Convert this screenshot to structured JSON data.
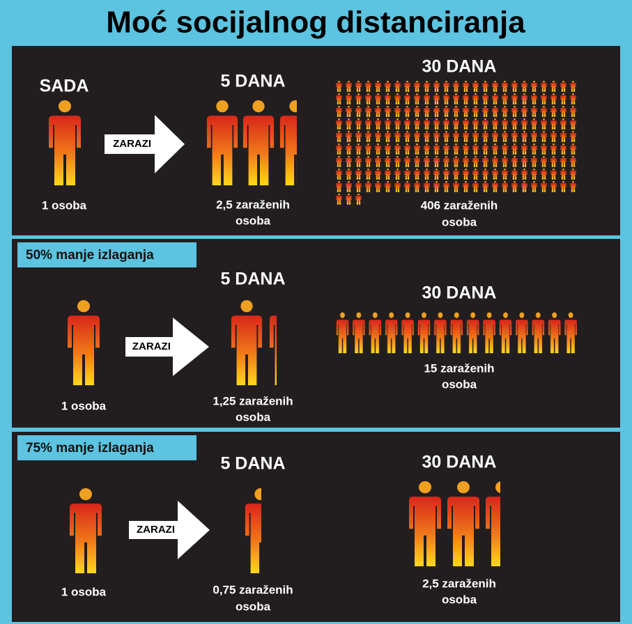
{
  "title": "Moć socijalnog distanciranja",
  "panels": [
    {
      "start_heading": "SADA",
      "start_caption": "1 osoba",
      "arrow": "ZARAZI",
      "day5_heading": "5 DANA",
      "day5_caption": [
        "2,5 zaraženih",
        "osoba"
      ],
      "day30_heading": "30 DANA",
      "day30_caption": [
        "406 zaraženih",
        "osoba"
      ]
    },
    {
      "badge": "50% manje izlaganja",
      "start_caption": "1 osoba",
      "arrow": "ZARAZI",
      "day5_heading": "5 DANA",
      "day5_caption": [
        "1,25 zaraženih",
        "osoba"
      ],
      "day30_heading": "30 DANA",
      "day30_caption": [
        "15 zaraženih",
        "osoba"
      ]
    },
    {
      "badge": "75% manje izlaganja",
      "start_caption": "1 osoba",
      "arrow": "ZARAZI",
      "day5_heading": "5 DANA",
      "day5_caption": [
        "0,75 zaraženih",
        "osoba"
      ],
      "day30_heading": "30 DANA",
      "day30_caption": [
        "2,5 zaraženih",
        "osoba"
      ]
    }
  ]
}
